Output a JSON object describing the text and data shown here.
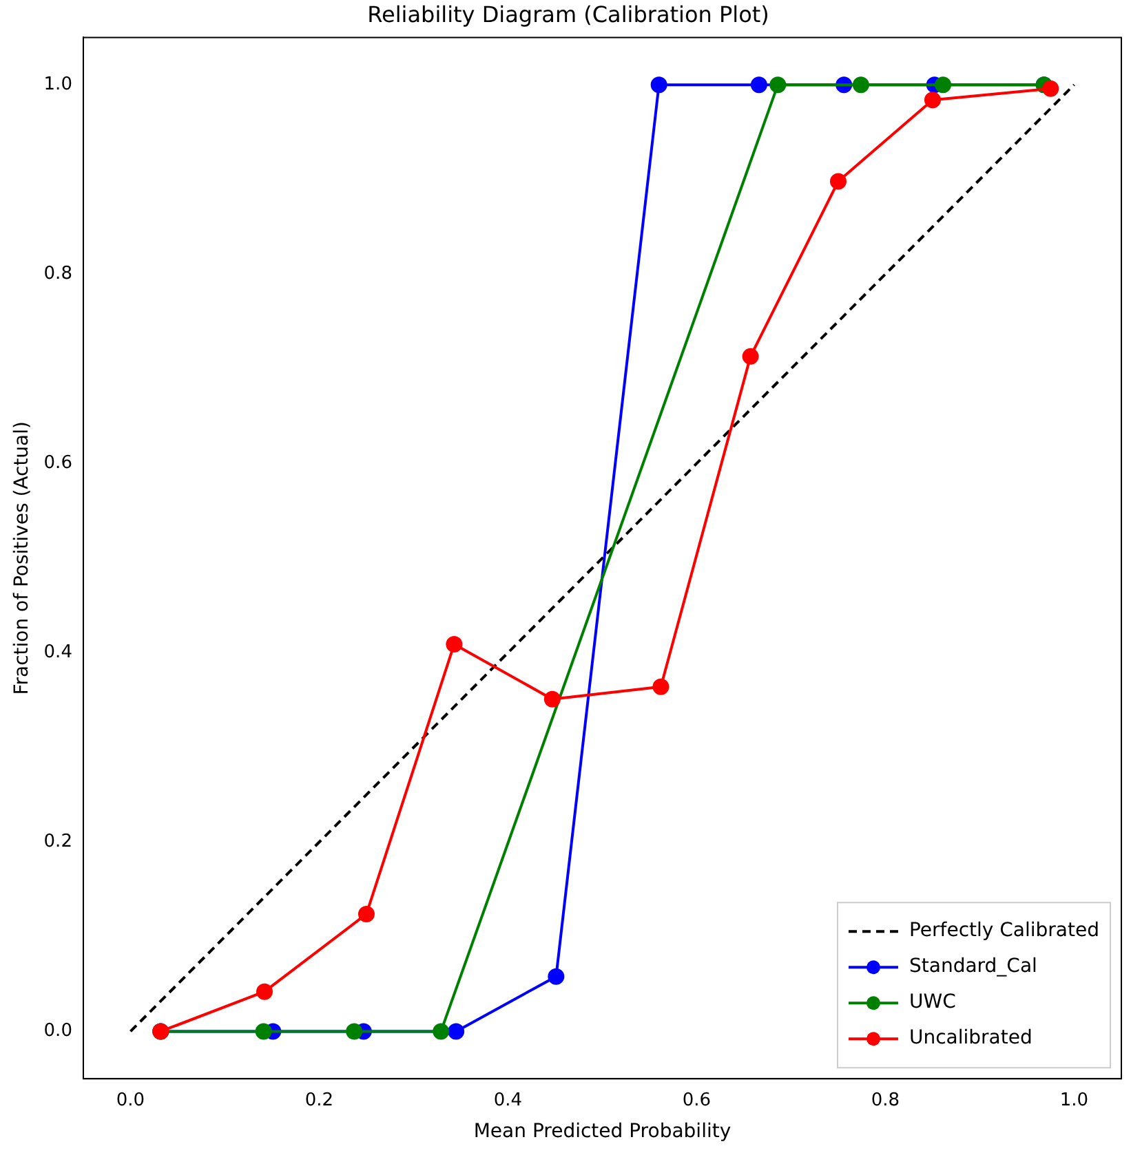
{
  "chart_data": {
    "type": "line",
    "title": "Reliability Diagram (Calibration Plot)",
    "xlabel": "Mean Predicted Probability",
    "ylabel": "Fraction of Positives (Actual)",
    "xlim": [
      -0.05,
      1.05
    ],
    "ylim": [
      -0.05,
      1.05
    ],
    "xticks": [
      {
        "value": 0,
        "label": "0.0"
      },
      0.2,
      0.4,
      0.6,
      0.8,
      {
        "value": 1,
        "label": "1.0"
      }
    ],
    "yticks": [
      {
        "value": 0,
        "label": "0.0"
      },
      0.2,
      0.4,
      0.6,
      0.8,
      {
        "value": 1,
        "label": "1.0"
      }
    ],
    "grid": false,
    "legend": "bottom right",
    "marker": "circle",
    "series": [
      {
        "name": "Perfectly Calibrated",
        "color": "#000000",
        "x": [
          0,
          1
        ],
        "values": [
          0,
          1
        ],
        "line_style": "dashed",
        "marker": "none"
      },
      {
        "name": "Standard_Cal",
        "color": "#0000ff",
        "x": [
          0.032,
          0.151,
          0.247,
          0.345,
          0.451,
          0.56,
          0.666,
          0.756,
          0.852,
          0.968
        ],
        "values": [
          0,
          0,
          0,
          0,
          0.058,
          1,
          1,
          1,
          1,
          1
        ]
      },
      {
        "name": "UWC",
        "color": "#008000",
        "x": [
          0.032,
          0.141,
          0.237,
          0.329,
          0.686,
          0.774,
          0.861,
          0.968
        ],
        "values": [
          0,
          0,
          0,
          0,
          1,
          1,
          1,
          1
        ]
      },
      {
        "name": "Uncalibrated",
        "color": "#ff0000",
        "x": [
          0.032,
          0.142,
          0.25,
          0.343,
          0.447,
          0.562,
          0.657,
          0.75,
          0.85,
          0.975
        ],
        "values": [
          0,
          0.042,
          0.124,
          0.409,
          0.351,
          0.364,
          0.713,
          0.898,
          0.984,
          0.996
        ]
      }
    ]
  }
}
